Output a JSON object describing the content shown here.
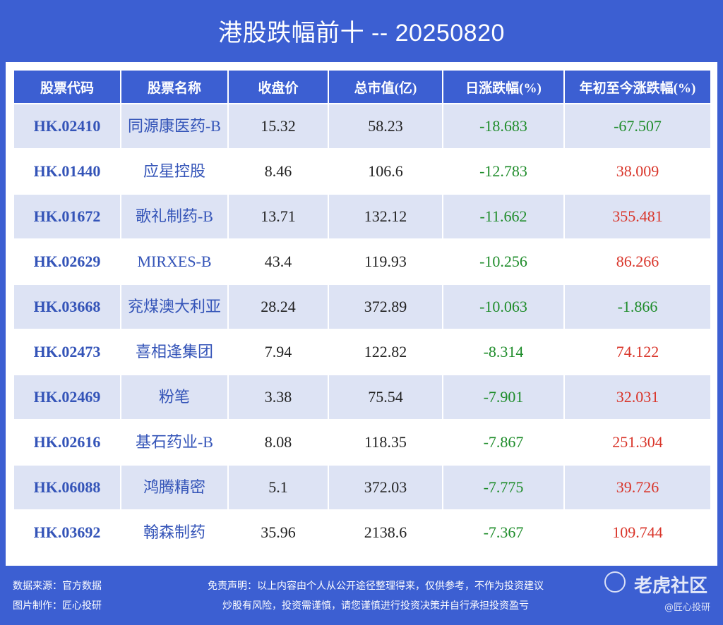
{
  "title": "港股跌幅前十 -- 20250820",
  "columns": [
    "股票代码",
    "股票名称",
    "收盘价",
    "总市值(亿)",
    "日涨跌幅(%)",
    "年初至今涨跌幅(%)"
  ],
  "rows": [
    {
      "code": "HK.02410",
      "name": "同源康医药-B",
      "close": "15.32",
      "cap": "58.23",
      "day": "-18.683",
      "ytd": "-67.507"
    },
    {
      "code": "HK.01440",
      "name": "应星控股",
      "close": "8.46",
      "cap": "106.6",
      "day": "-12.783",
      "ytd": "38.009"
    },
    {
      "code": "HK.01672",
      "name": "歌礼制药-B",
      "close": "13.71",
      "cap": "132.12",
      "day": "-11.662",
      "ytd": "355.481"
    },
    {
      "code": "HK.02629",
      "name": "MIRXES-B",
      "close": "43.4",
      "cap": "119.93",
      "day": "-10.256",
      "ytd": "86.266"
    },
    {
      "code": "HK.03668",
      "name": "兖煤澳大利亚",
      "close": "28.24",
      "cap": "372.89",
      "day": "-10.063",
      "ytd": "-1.866"
    },
    {
      "code": "HK.02473",
      "name": "喜相逢集团",
      "close": "7.94",
      "cap": "122.82",
      "day": "-8.314",
      "ytd": "74.122"
    },
    {
      "code": "HK.02469",
      "name": "粉笔",
      "close": "3.38",
      "cap": "75.54",
      "day": "-7.901",
      "ytd": "32.031"
    },
    {
      "code": "HK.02616",
      "name": "基石药业-B",
      "close": "8.08",
      "cap": "118.35",
      "day": "-7.867",
      "ytd": "251.304"
    },
    {
      "code": "HK.06088",
      "name": "鸿腾精密",
      "close": "5.1",
      "cap": "372.03",
      "day": "-7.775",
      "ytd": "39.726"
    },
    {
      "code": "HK.03692",
      "name": "翰森制药",
      "close": "35.96",
      "cap": "2138.6",
      "day": "-7.367",
      "ytd": "109.744"
    }
  ],
  "footer": {
    "source": "数据来源：官方数据",
    "maker": "图片制作：匠心投研",
    "disclaimer1": "免责声明：以上内容由个人从公开途径整理得来，仅供参考，不作为投资建议",
    "disclaimer2": "炒股有风险，投资需谨慎，请您谨慎进行投资决策并自行承担投资盈亏",
    "watermark": "老虎社区",
    "watermark_sub": "@匠心投研"
  },
  "colors": {
    "header": "#3c5fd2",
    "odd_row": "#dde3f4",
    "negative": "#1e8c2a",
    "positive": "#d9352a"
  }
}
